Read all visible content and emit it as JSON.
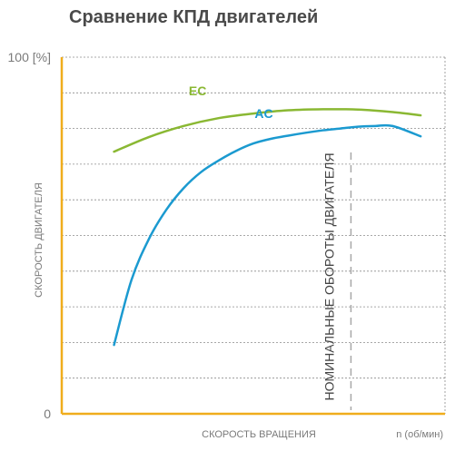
{
  "page": {
    "title": "Сравнение КПД двигателей"
  },
  "chart_data": {
    "type": "line",
    "title": "Сравнение КПД двигателей",
    "xlabel": "СКОРОСТЬ ВРАЩЕНИЯ",
    "xunit": "n (об/мин)",
    "ylabel": "СКОРОСТЬ ДВИГАТЕЛЯ",
    "ylim": [
      0,
      100
    ],
    "y_tick_labels": {
      "top": "100 [%]",
      "bottom": "0"
    },
    "grid": true,
    "vertical_marker_label": "НОМИНАЛЬНЫЕ ОБОРОТЫ ДВИГАТЕЛЯ",
    "vertical_marker_x": 0.83,
    "xlim": [
      0,
      1.1
    ],
    "series": [
      {
        "name": "EC",
        "color": "#8ab833",
        "x": [
          0.15,
          0.25,
          0.35,
          0.45,
          0.55,
          0.65,
          0.75,
          0.85,
          0.95,
          1.03
        ],
        "y": [
          73.5,
          77.6,
          80.7,
          82.9,
          84.2,
          85.1,
          85.4,
          85.3,
          84.6,
          83.7
        ]
      },
      {
        "name": "AC",
        "color": "#1b9ad0",
        "x": [
          0.15,
          0.2,
          0.25,
          0.3,
          0.35,
          0.4,
          0.45,
          0.5,
          0.55,
          0.6,
          0.65,
          0.7,
          0.75,
          0.8,
          0.85,
          0.9,
          0.95,
          1.03
        ],
        "y": [
          19.3,
          37.5,
          49.0,
          57.2,
          63.3,
          67.8,
          71.0,
          73.7,
          75.8,
          77.1,
          78.0,
          78.8,
          79.5,
          80.0,
          80.5,
          80.7,
          80.7,
          77.8
        ]
      }
    ]
  }
}
